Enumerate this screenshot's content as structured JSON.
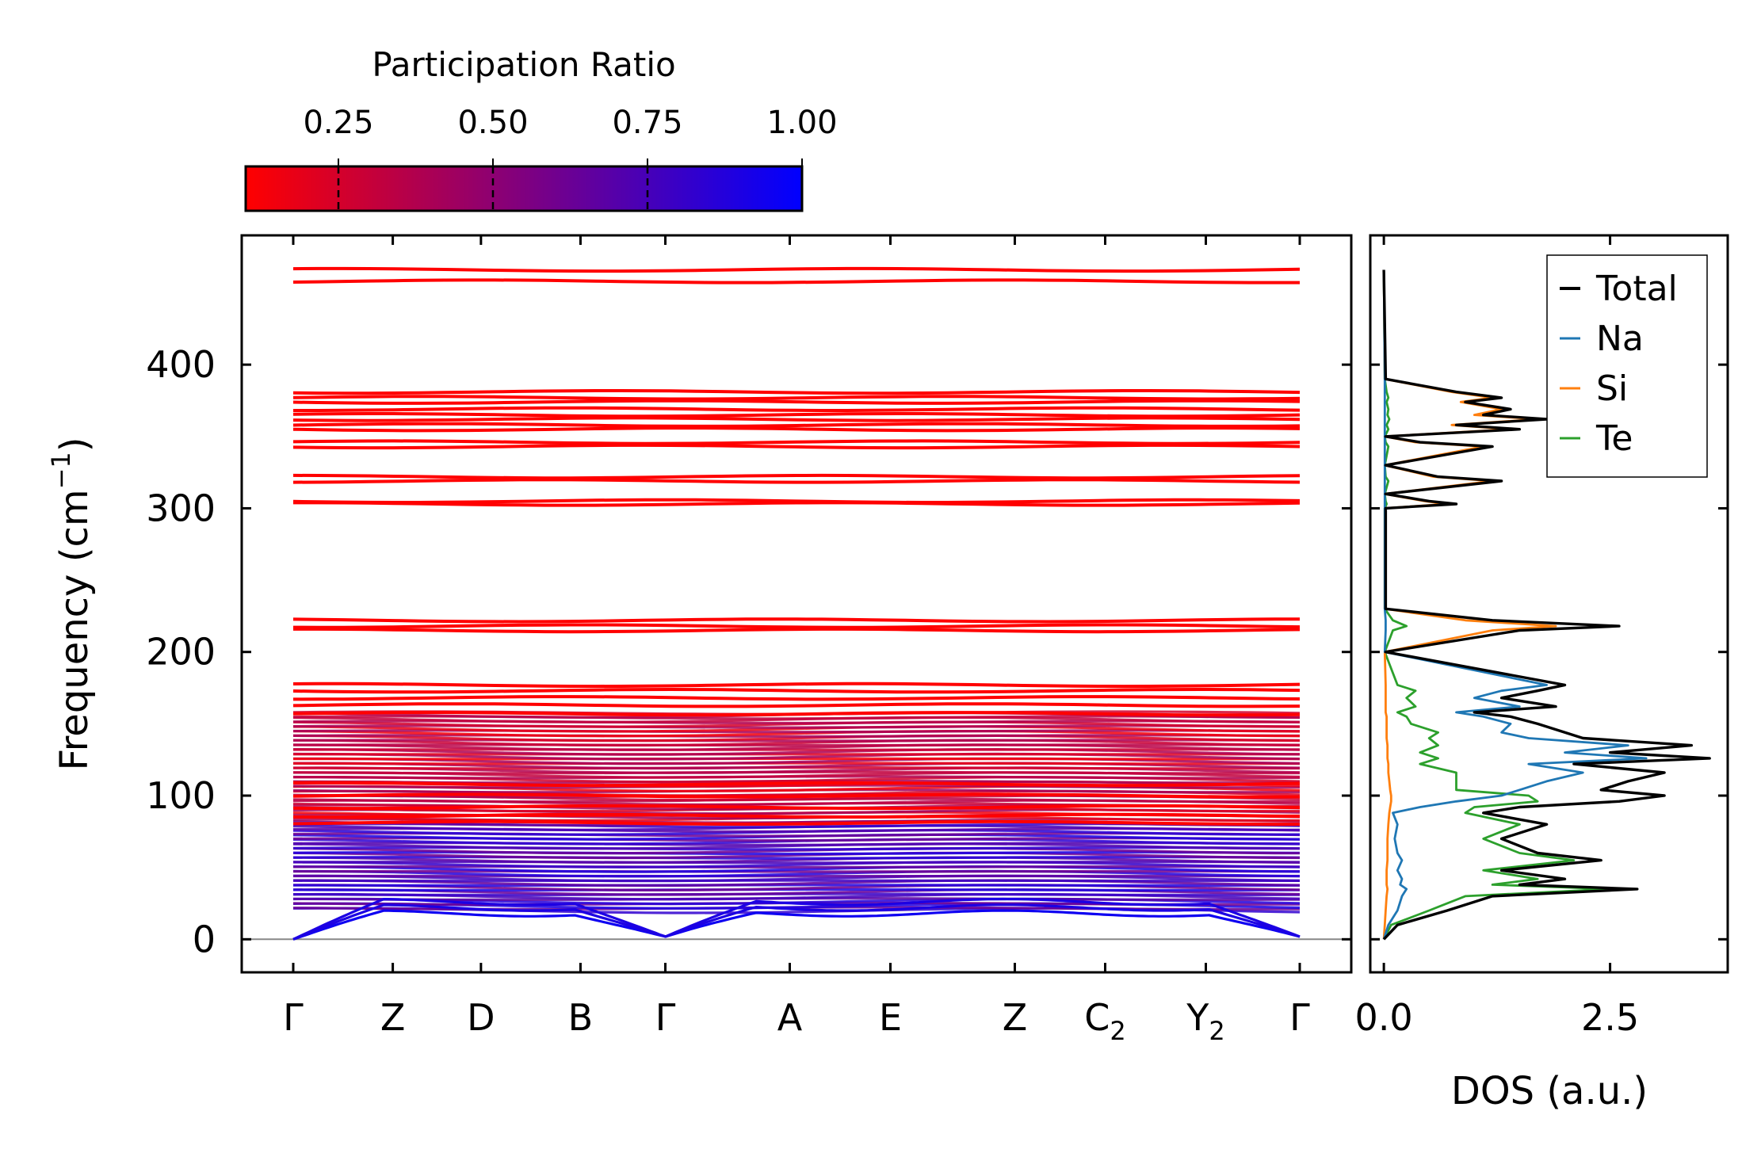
{
  "chart_data": [
    {
      "type": "line",
      "title": "",
      "xlabel": "",
      "ylabel": "Frequency (cm⁻¹)",
      "ylabel_main": "Frequency (cm",
      "ylabel_sup": "−1",
      "ylabel_close": ")",
      "ylim": [
        -23,
        490
      ],
      "y_ticks": [
        0,
        100,
        200,
        300,
        400
      ],
      "y_tick_labels": [
        "0",
        "100",
        "200",
        "300",
        "400"
      ],
      "k_path": [
        {
          "label": "Γ",
          "sub": "",
          "pos": 0.0
        },
        {
          "label": "Z",
          "sub": "",
          "pos": 0.0989
        },
        {
          "label": "D",
          "sub": "",
          "pos": 0.1865
        },
        {
          "label": "B",
          "sub": "",
          "pos": 0.2854
        },
        {
          "label": "Γ",
          "sub": "",
          "pos": 0.3697
        },
        {
          "label": "A",
          "sub": "",
          "pos": 0.4933
        },
        {
          "label": "E",
          "sub": "",
          "pos": 0.5933
        },
        {
          "label": "Z",
          "sub": "",
          "pos": 0.7169
        },
        {
          "label": "C",
          "sub": "2",
          "pos": 0.8067
        },
        {
          "label": "Y",
          "sub": "2",
          "pos": 0.9067
        },
        {
          "label": "Γ",
          "sub": "",
          "pos": 1.0
        }
      ],
      "flat_bands": {
        "values": [
          466,
          458,
          381,
          377,
          374,
          369,
          365,
          362,
          358,
          355,
          346,
          343,
          322,
          319,
          305,
          303,
          222,
          218,
          215,
          177,
          173,
          168,
          163,
          157,
          108,
          100,
          92,
          86,
          81
        ],
        "participation": 0.05
      },
      "dense_region_range": [
        20,
        158
      ],
      "low_region_range": [
        20,
        80
      ],
      "acoustic_branches": [
        {
          "gamma_to_z": [
            0,
            18
          ],
          "z_to_d": [
            18,
            20
          ],
          "participation": 0.95
        },
        {
          "gamma_to_z": [
            0,
            22
          ],
          "z_to_d": [
            22,
            24
          ],
          "participation": 0.9
        },
        {
          "gamma_to_z": [
            0,
            26
          ],
          "z_to_d": [
            26,
            27
          ],
          "participation": 0.9
        }
      ],
      "colorbar": {
        "title": "Participation Ratio",
        "range": [
          0.1,
          1.0
        ],
        "ticks": [
          0.25,
          0.5,
          0.75,
          1.0
        ],
        "tick_labels": [
          "0.25",
          "0.50",
          "0.75",
          "1.00"
        ],
        "color_low": "#ff0000",
        "color_high": "#0000ff"
      }
    },
    {
      "type": "line",
      "title": "",
      "xlabel": "DOS (a.u.)",
      "ylabel": "",
      "xlim": [
        -0.15,
        3.8
      ],
      "ylim": [
        -23,
        490
      ],
      "x_ticks": [
        0.0,
        2.5
      ],
      "x_tick_labels": [
        "0.0",
        "2.5"
      ],
      "legend_location": "top-right",
      "series": [
        {
          "name": "Total",
          "color": "#000000",
          "y": [
            0,
            10,
            20,
            30,
            35,
            38,
            42,
            48,
            55,
            60,
            70,
            80,
            88,
            92,
            96,
            100,
            104,
            110,
            116,
            122,
            126,
            130,
            135,
            140,
            144,
            150,
            155,
            158,
            162,
            168,
            173,
            177,
            200,
            215,
            218,
            222,
            230,
            300,
            303,
            305,
            310,
            319,
            322,
            330,
            343,
            346,
            350,
            355,
            358,
            362,
            365,
            369,
            374,
            377,
            381,
            390,
            466
          ],
          "values": [
            0,
            0.15,
            0.7,
            1.2,
            2.8,
            1.5,
            2.0,
            1.3,
            2.4,
            1.7,
            1.3,
            1.8,
            1.1,
            1.5,
            2.6,
            3.1,
            2.4,
            2.7,
            3.1,
            2.1,
            3.6,
            2.5,
            3.4,
            2.2,
            2.0,
            1.7,
            1.4,
            1.0,
            1.9,
            1.3,
            1.7,
            2.0,
            0.02,
            1.5,
            2.6,
            1.2,
            0.02,
            0.02,
            0.8,
            0.5,
            0.02,
            1.3,
            0.6,
            0.02,
            1.2,
            0.4,
            0.02,
            1.5,
            0.8,
            1.8,
            1.1,
            1.4,
            0.9,
            1.3,
            0.8,
            0.02,
            0
          ]
        },
        {
          "name": "Na",
          "color": "#1f77b4",
          "y": [
            0,
            10,
            20,
            30,
            35,
            38,
            42,
            48,
            55,
            60,
            70,
            80,
            88,
            92,
            96,
            100,
            104,
            110,
            116,
            122,
            126,
            130,
            135,
            140,
            144,
            150,
            155,
            158,
            162,
            168,
            173,
            177,
            200,
            215,
            218,
            222,
            230,
            300,
            303,
            305,
            310,
            319,
            322,
            330,
            343,
            346,
            350,
            355,
            358,
            362,
            365,
            369,
            374,
            377,
            381,
            390,
            466
          ],
          "values": [
            0,
            0.05,
            0.15,
            0.2,
            0.25,
            0.18,
            0.2,
            0.15,
            0.2,
            0.15,
            0.12,
            0.15,
            0.1,
            0.4,
            0.8,
            1.3,
            1.5,
            1.8,
            2.2,
            1.6,
            2.9,
            2.0,
            2.7,
            1.6,
            1.3,
            1.4,
            1.1,
            0.8,
            1.5,
            1.0,
            1.3,
            1.8,
            0.01,
            0.02,
            0.02,
            0.02,
            0.01,
            0.01,
            0.01,
            0.01,
            0.01,
            0.01,
            0.01,
            0.01,
            0.01,
            0.01,
            0.01,
            0.01,
            0.01,
            0.01,
            0.01,
            0.01,
            0.01,
            0.01,
            0.01,
            0.01,
            0
          ]
        },
        {
          "name": "Si",
          "color": "#ff7f0e",
          "y": [
            0,
            10,
            20,
            30,
            35,
            38,
            42,
            48,
            55,
            60,
            70,
            80,
            88,
            92,
            96,
            100,
            104,
            110,
            116,
            122,
            126,
            130,
            135,
            140,
            144,
            150,
            155,
            158,
            162,
            168,
            173,
            177,
            200,
            215,
            218,
            222,
            230,
            300,
            303,
            305,
            310,
            319,
            322,
            330,
            343,
            346,
            350,
            355,
            358,
            362,
            365,
            369,
            374,
            377,
            381,
            390,
            466
          ],
          "values": [
            0,
            0.01,
            0.02,
            0.03,
            0.04,
            0.03,
            0.03,
            0.03,
            0.04,
            0.04,
            0.04,
            0.05,
            0.06,
            0.07,
            0.08,
            0.08,
            0.07,
            0.06,
            0.05,
            0.05,
            0.04,
            0.04,
            0.04,
            0.03,
            0.03,
            0.03,
            0.03,
            0.02,
            0.02,
            0.02,
            0.02,
            0.02,
            0.01,
            1.2,
            1.9,
            0.9,
            0.01,
            0.01,
            0.7,
            0.45,
            0.01,
            1.2,
            0.55,
            0.01,
            1.1,
            0.35,
            0.01,
            1.4,
            0.75,
            1.7,
            1.0,
            1.3,
            0.85,
            1.2,
            0.75,
            0.01,
            0
          ]
        },
        {
          "name": "Te",
          "color": "#2ca02c",
          "y": [
            0,
            10,
            20,
            30,
            35,
            38,
            42,
            48,
            55,
            60,
            70,
            80,
            88,
            92,
            96,
            100,
            104,
            110,
            116,
            122,
            126,
            130,
            135,
            140,
            144,
            150,
            155,
            158,
            162,
            168,
            173,
            177,
            200,
            215,
            218,
            222,
            230,
            300,
            303,
            305,
            310,
            319,
            322,
            330,
            343,
            346,
            350,
            355,
            358,
            362,
            365,
            369,
            374,
            377,
            381,
            390,
            466
          ],
          "values": [
            0,
            0.08,
            0.5,
            0.9,
            2.5,
            1.2,
            1.7,
            1.1,
            2.1,
            1.5,
            1.1,
            1.5,
            0.9,
            1.0,
            1.7,
            1.6,
            0.8,
            0.8,
            0.8,
            0.4,
            0.6,
            0.4,
            0.6,
            0.5,
            0.6,
            0.3,
            0.25,
            0.15,
            0.35,
            0.25,
            0.35,
            0.15,
            0.01,
            0.1,
            0.25,
            0.1,
            0.01,
            0.01,
            0.03,
            0.02,
            0.01,
            0.05,
            0.02,
            0.01,
            0.05,
            0.02,
            0.01,
            0.05,
            0.03,
            0.06,
            0.04,
            0.05,
            0.03,
            0.05,
            0.03,
            0.01,
            0
          ]
        }
      ]
    }
  ]
}
